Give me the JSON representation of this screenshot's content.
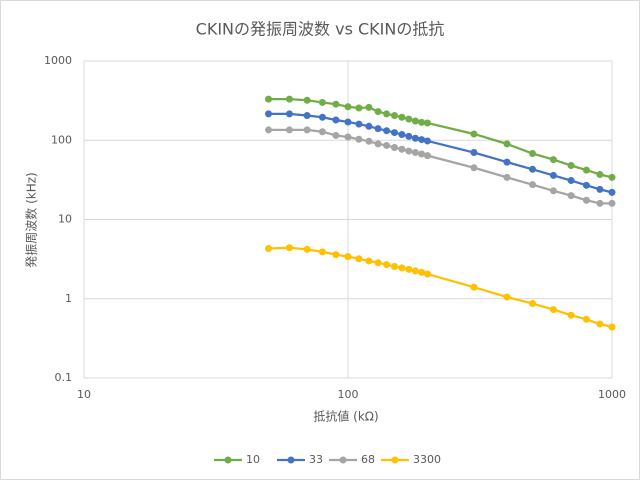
{
  "chart_data": {
    "type": "line",
    "title": "CKINの発振周波数 vs CKINの抵抗",
    "x_label": "抵抗値 (kΩ)",
    "y_label": "発振周波数 (kHz)",
    "x": [
      50,
      60,
      70,
      80,
      90,
      100,
      110,
      120,
      130,
      140,
      150,
      160,
      170,
      180,
      190,
      200,
      300,
      400,
      500,
      600,
      700,
      800,
      900,
      1000
    ],
    "series": [
      {
        "name": "10",
        "color": "#70ad47",
        "values": [
          330,
          330,
          320,
          300,
          285,
          265,
          255,
          260,
          230,
          215,
          205,
          195,
          185,
          175,
          168,
          165,
          120,
          90,
          68,
          57,
          48,
          42,
          37,
          34
        ]
      },
      {
        "name": "33",
        "color": "#4472c4",
        "values": [
          215,
          215,
          205,
          195,
          180,
          170,
          160,
          150,
          140,
          132,
          125,
          118,
          112,
          106,
          102,
          98,
          70,
          53,
          43,
          36,
          31,
          27,
          24,
          22
        ]
      },
      {
        "name": "68",
        "color": "#a5a5a5",
        "values": [
          135,
          135,
          135,
          128,
          115,
          110,
          103,
          97,
          90,
          86,
          81,
          77,
          73,
          70,
          67,
          64,
          45,
          34,
          27.5,
          23,
          20,
          17.5,
          16,
          16
        ]
      },
      {
        "name": "3300",
        "color": "#ffc000",
        "values": [
          4.3,
          4.4,
          4.2,
          3.9,
          3.6,
          3.4,
          3.2,
          3.0,
          2.85,
          2.7,
          2.55,
          2.45,
          2.35,
          2.25,
          2.15,
          2.05,
          1.4,
          1.05,
          0.87,
          0.73,
          0.62,
          0.55,
          0.48,
          0.44
        ]
      }
    ],
    "xlim": [
      10,
      1000
    ],
    "xticks": [
      10,
      100,
      1000
    ],
    "ylim": [
      0.1,
      1000
    ],
    "yticks": [
      0.1,
      1,
      10,
      100,
      1000
    ],
    "x_log": true,
    "y_log": true,
    "grid": true,
    "legend": "bottom"
  }
}
